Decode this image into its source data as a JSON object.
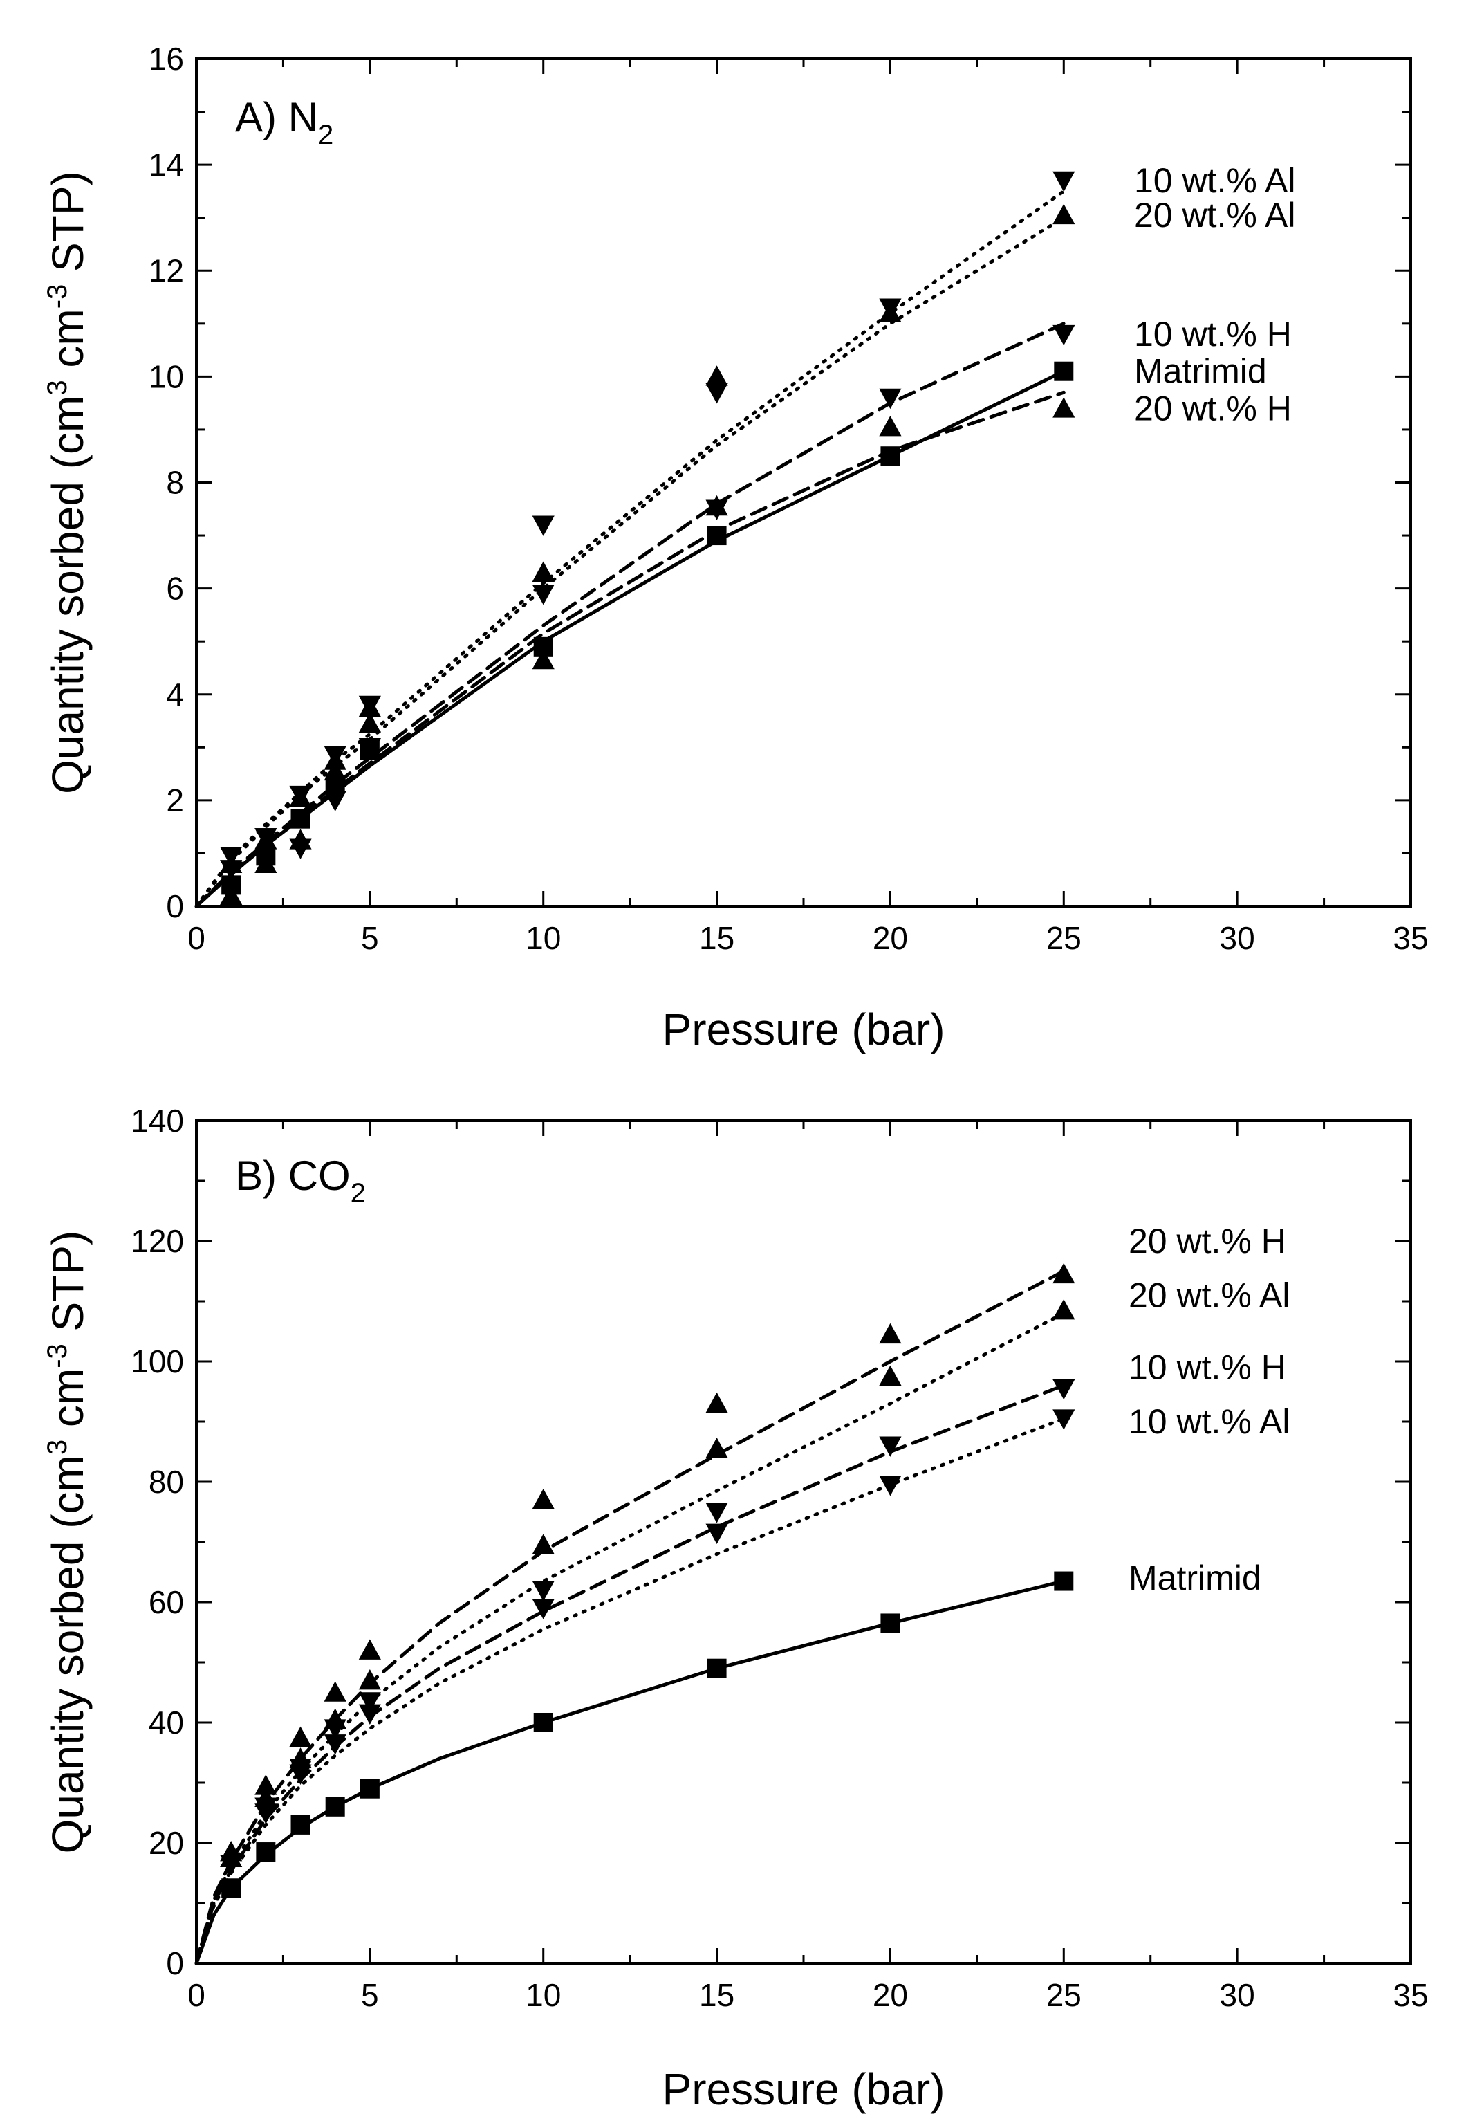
{
  "chart_data": [
    {
      "type": "scatter",
      "panel": "A",
      "title_prefix": "A) N",
      "title_subscript": "2",
      "xlabel": "Pressure (bar)",
      "ylabel": "Quantity sorbed (cm³ cm⁻³ STP)",
      "ylabel_parts": [
        "Quantity sorbed (cm",
        "3",
        " cm",
        "-3",
        " STP)"
      ],
      "xlim": [
        0,
        35
      ],
      "ylim": [
        0,
        16
      ],
      "xticks": [
        0,
        5,
        10,
        15,
        20,
        25,
        30,
        35
      ],
      "yticks": [
        0,
        2,
        4,
        6,
        8,
        10,
        12,
        14,
        16
      ],
      "x_tick_labels": [
        "0",
        "5",
        "10",
        "15",
        "20",
        "25",
        "30",
        "35"
      ],
      "y_tick_labels": [
        "0",
        "2",
        "4",
        "6",
        "8",
        "10",
        "12",
        "14",
        "16"
      ],
      "series": [
        {
          "name": "10 wt.% Al",
          "marker": "triangle-down",
          "line": "dotted",
          "x": [
            1,
            2,
            3,
            4,
            5,
            10,
            15,
            20,
            25
          ],
          "y": [
            0.95,
            1.3,
            2.1,
            2.85,
            3.8,
            7.2,
            9.7,
            11.3,
            13.7
          ],
          "fit": [
            [
              0,
              0
            ],
            [
              1,
              0.9
            ],
            [
              2,
              1.55
            ],
            [
              3,
              2.15
            ],
            [
              4,
              2.75
            ],
            [
              5,
              3.25
            ],
            [
              10,
              6.1
            ],
            [
              15,
              8.8
            ],
            [
              20,
              11.2
            ],
            [
              25,
              13.5
            ]
          ]
        },
        {
          "name": "20 wt.% Al",
          "marker": "triangle-up",
          "line": "dotted",
          "x": [
            1,
            2,
            3,
            4,
            5,
            10,
            15,
            20,
            25
          ],
          "y": [
            0.8,
            1.25,
            2.05,
            2.75,
            3.75,
            6.3,
            10.0,
            11.2,
            13.05
          ],
          "fit": [
            [
              0,
              0
            ],
            [
              1,
              0.85
            ],
            [
              2,
              1.5
            ],
            [
              3,
              2.1
            ],
            [
              4,
              2.65
            ],
            [
              5,
              3.15
            ],
            [
              10,
              6.0
            ],
            [
              15,
              8.7
            ],
            [
              20,
              11.0
            ],
            [
              25,
              13.0
            ]
          ]
        },
        {
          "name": "10 wt.% H",
          "marker": "triangle-down",
          "line": "dashed",
          "x": [
            1,
            2,
            3,
            4,
            5,
            10,
            15,
            20,
            25
          ],
          "y": [
            0.7,
            1.3,
            1.1,
            2.0,
            3.0,
            5.9,
            7.5,
            9.6,
            10.8
          ],
          "fit": [
            [
              0,
              0
            ],
            [
              1,
              0.65
            ],
            [
              2,
              1.2
            ],
            [
              3,
              1.75
            ],
            [
              4,
              2.3
            ],
            [
              5,
              2.8
            ],
            [
              10,
              5.3
            ],
            [
              15,
              7.6
            ],
            [
              20,
              9.5
            ],
            [
              25,
              11.0
            ]
          ]
        },
        {
          "name": "Matrimid",
          "marker": "square",
          "line": "solid",
          "x": [
            1,
            2,
            3,
            4,
            5,
            10,
            15,
            20,
            25
          ],
          "y": [
            0.4,
            0.95,
            1.65,
            2.3,
            2.95,
            4.9,
            7.0,
            8.5,
            10.1
          ],
          "fit": [
            [
              0,
              0
            ],
            [
              1,
              0.6
            ],
            [
              2,
              1.15
            ],
            [
              3,
              1.65
            ],
            [
              4,
              2.15
            ],
            [
              5,
              2.65
            ],
            [
              10,
              5.0
            ],
            [
              15,
              6.9
            ],
            [
              20,
              8.5
            ],
            [
              25,
              10.1
            ]
          ]
        },
        {
          "name": "20 wt.% H",
          "marker": "triangle-up",
          "line": "dashed",
          "x": [
            1,
            2,
            3,
            4,
            5,
            10,
            15,
            20,
            25
          ],
          "y": [
            0.2,
            0.8,
            1.25,
            2.55,
            3.45,
            4.65,
            7.55,
            9.05,
            9.4
          ],
          "fit": [
            [
              0,
              0
            ],
            [
              1,
              0.6
            ],
            [
              2,
              1.15
            ],
            [
              3,
              1.7
            ],
            [
              4,
              2.2
            ],
            [
              5,
              2.7
            ],
            [
              10,
              5.15
            ],
            [
              15,
              7.1
            ],
            [
              20,
              8.6
            ],
            [
              25,
              9.7
            ]
          ]
        }
      ],
      "legend": [
        {
          "label": "10 wt.% Al",
          "marker": "triangle-down",
          "y": 13.7
        },
        {
          "label": "20 wt.% Al",
          "marker": "triangle-up",
          "y": 13.05
        },
        {
          "label": "10 wt.% H",
          "marker": "triangle-down",
          "y": 10.8
        },
        {
          "label": "Matrimid",
          "marker": "square",
          "y": 10.1
        },
        {
          "label": "20 wt.% H",
          "marker": "triangle-up",
          "y": 9.4
        }
      ]
    },
    {
      "type": "scatter",
      "panel": "B",
      "title_prefix": "B) CO",
      "title_subscript": "2",
      "xlabel": "Pressure (bar)",
      "ylabel": "Quantity sorbed (cm³ cm⁻³ STP)",
      "ylabel_parts": [
        "Quantity sorbed (cm",
        "3",
        " cm",
        "-3",
        " STP)"
      ],
      "xlim": [
        0,
        35
      ],
      "ylim": [
        0,
        140
      ],
      "xticks": [
        0,
        5,
        10,
        15,
        20,
        25,
        30,
        35
      ],
      "yticks": [
        0,
        20,
        40,
        60,
        80,
        100,
        120,
        140
      ],
      "x_tick_labels": [
        "0",
        "5",
        "10",
        "15",
        "20",
        "25",
        "30",
        "35"
      ],
      "y_tick_labels": [
        "0",
        "20",
        "40",
        "60",
        "80",
        "100",
        "120",
        "140"
      ],
      "series": [
        {
          "name": "20 wt.% H",
          "marker": "triangle-up",
          "line": "dashed",
          "x": [
            1,
            2,
            3,
            4,
            5,
            10,
            15,
            20,
            25
          ],
          "y": [
            18.5,
            29.5,
            37.5,
            45.0,
            52.0,
            77.0,
            93.0,
            104.5,
            114.5
          ],
          "fit": [
            [
              0,
              0
            ],
            [
              0.5,
              11
            ],
            [
              1,
              17
            ],
            [
              2,
              26.5
            ],
            [
              3,
              34
            ],
            [
              4,
              40.5
            ],
            [
              5,
              46.5
            ],
            [
              7,
              56.5
            ],
            [
              10,
              68.5
            ],
            [
              15,
              84.5
            ],
            [
              20,
              100
            ],
            [
              25,
              115
            ]
          ]
        },
        {
          "name": "20 wt.% Al",
          "marker": "triangle-up",
          "line": "dotted",
          "x": [
            1,
            2,
            3,
            4,
            5,
            10,
            15,
            20,
            25
          ],
          "y": [
            17.5,
            27.5,
            34.0,
            40.5,
            47.0,
            69.5,
            85.5,
            97.5,
            108.5
          ],
          "fit": [
            [
              0,
              0
            ],
            [
              0.5,
              10.5
            ],
            [
              1,
              16
            ],
            [
              2,
              25
            ],
            [
              3,
              32
            ],
            [
              4,
              38
            ],
            [
              5,
              43.5
            ],
            [
              7,
              52.5
            ],
            [
              10,
              63.5
            ],
            [
              15,
              78.5
            ],
            [
              20,
              93
            ],
            [
              25,
              108
            ]
          ]
        },
        {
          "name": "10 wt.% H",
          "marker": "triangle-down",
          "line": "dashed",
          "x": [
            1,
            2,
            3,
            4,
            5,
            10,
            15,
            20,
            25
          ],
          "y": [
            16.5,
            26.0,
            32.5,
            39.0,
            43.5,
            62.0,
            75.0,
            86.0,
            95.5
          ],
          "fit": [
            [
              0,
              0
            ],
            [
              0.5,
              10
            ],
            [
              1,
              15.5
            ],
            [
              2,
              24
            ],
            [
              3,
              30.5
            ],
            [
              4,
              36
            ],
            [
              5,
              41
            ],
            [
              7,
              49
            ],
            [
              10,
              58.5
            ],
            [
              15,
              72.5
            ],
            [
              20,
              85
            ],
            [
              25,
              96
            ]
          ]
        },
        {
          "name": "10 wt.% Al",
          "marker": "triangle-down",
          "line": "dotted",
          "x": [
            1,
            2,
            3,
            4,
            5,
            10,
            15,
            20,
            25
          ],
          "y": [
            16.5,
            25.0,
            31.5,
            36.5,
            41.5,
            59.0,
            71.5,
            79.5,
            90.5
          ],
          "fit": [
            [
              0,
              0
            ],
            [
              0.5,
              9.5
            ],
            [
              1,
              15
            ],
            [
              2,
              23
            ],
            [
              3,
              29.5
            ],
            [
              4,
              34.5
            ],
            [
              5,
              39
            ],
            [
              7,
              46.5
            ],
            [
              10,
              55.5
            ],
            [
              15,
              68
            ],
            [
              20,
              79.5
            ],
            [
              25,
              90.5
            ]
          ]
        },
        {
          "name": "Matrimid",
          "marker": "square",
          "line": "solid",
          "x": [
            1,
            2,
            3,
            4,
            5,
            10,
            15,
            20,
            25
          ],
          "y": [
            12.5,
            18.5,
            23.0,
            26.0,
            29.0,
            40.0,
            49.0,
            56.5,
            63.5
          ],
          "fit": [
            [
              0,
              0
            ],
            [
              0.5,
              8
            ],
            [
              1,
              12.5
            ],
            [
              2,
              18
            ],
            [
              3,
              22.5
            ],
            [
              4,
              26
            ],
            [
              5,
              29
            ],
            [
              7,
              34
            ],
            [
              10,
              40
            ],
            [
              15,
              49
            ],
            [
              20,
              56.5
            ],
            [
              25,
              63.5
            ]
          ]
        }
      ],
      "legend": [
        {
          "label": "20 wt.% H",
          "marker": "triangle-up",
          "y": 120
        },
        {
          "label": "20 wt.% Al",
          "marker": "triangle-up",
          "y": 111
        },
        {
          "label": "10 wt.% H",
          "marker": "triangle-down",
          "y": 99
        },
        {
          "label": "10 wt.% Al",
          "marker": "triangle-down",
          "y": 90
        },
        {
          "label": "Matrimid",
          "marker": "square",
          "y": 64
        }
      ]
    }
  ]
}
